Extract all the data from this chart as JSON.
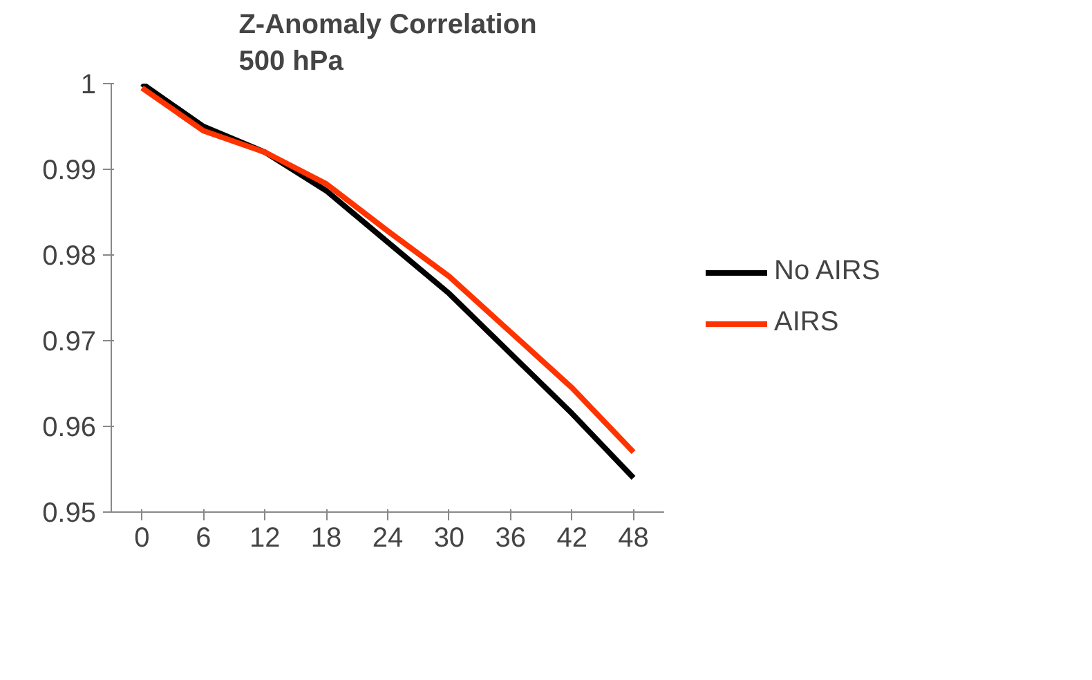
{
  "chart_data": {
    "type": "line",
    "title": "Z-Anomaly Correlation\n500 hPa",
    "categories": [
      "0",
      "6",
      "12",
      "18",
      "24",
      "30",
      "36",
      "42",
      "48"
    ],
    "series": [
      {
        "name": "No AIRS",
        "color": "#000000",
        "values": [
          1.0,
          0.995,
          0.992,
          0.9875,
          0.9815,
          0.9755,
          0.9685,
          0.9615,
          0.954
        ]
      },
      {
        "name": "AIRS",
        "color": "#ff3300",
        "values": [
          0.9995,
          0.9945,
          0.992,
          0.9883,
          0.9828,
          0.9775,
          0.971,
          0.9645,
          0.957
        ]
      }
    ],
    "ylim": [
      0.95,
      1.0
    ],
    "yticks": [
      0.95,
      0.96,
      0.97,
      0.98,
      0.99,
      1
    ],
    "grid": false,
    "legend": "right",
    "marker": "none",
    "line_style": "solid"
  }
}
